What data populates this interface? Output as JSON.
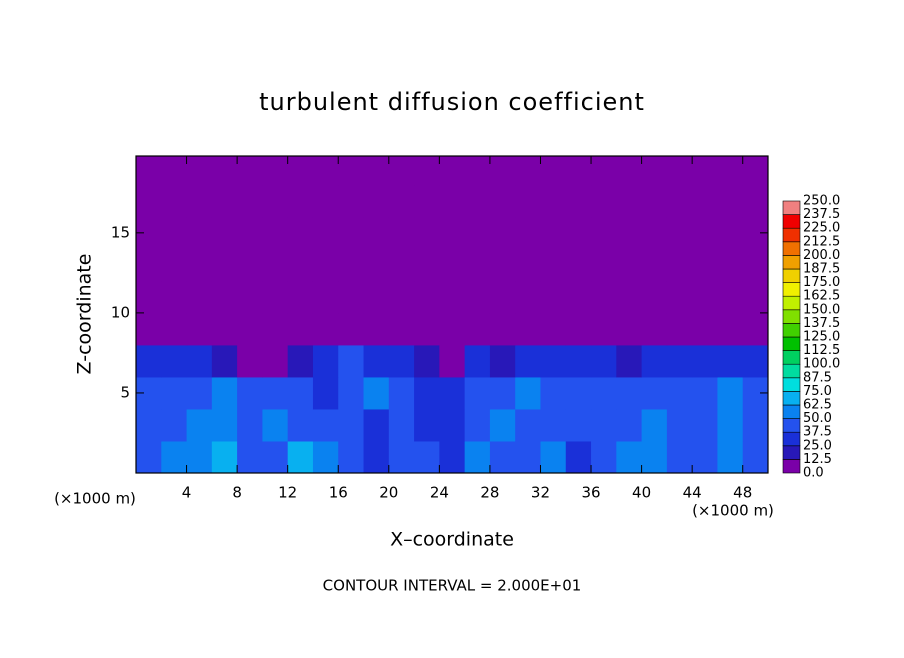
{
  "chart_data": {
    "type": "heatmap",
    "title": "turbulent diffusion coefficient",
    "x_label": "X–coordinate",
    "y_label": "Z-coordinate",
    "x_unit": "(×1000 m)",
    "note": "CONTOUR INTERVAL = 2.000E+01",
    "xlim": [
      0,
      50
    ],
    "ylim": [
      0,
      19.8
    ],
    "xticks": [
      4,
      8,
      12,
      16,
      20,
      24,
      28,
      32,
      36,
      40,
      44,
      48
    ],
    "yticks": [
      5,
      10,
      15
    ],
    "x": [
      1,
      3,
      5,
      7,
      9,
      11,
      13,
      15,
      17,
      19,
      21,
      23,
      25,
      27,
      29,
      31,
      33,
      35,
      37,
      39,
      41,
      43,
      45,
      47,
      49
    ],
    "y": [
      1,
      3,
      5,
      7,
      9,
      11,
      13,
      15,
      17,
      19
    ],
    "z": [
      [
        45,
        60,
        55,
        70,
        40,
        45,
        65,
        50,
        40,
        35,
        40,
        38,
        35,
        60,
        40,
        45,
        55,
        35,
        40,
        50,
        60,
        45,
        40,
        55,
        40
      ],
      [
        40,
        45,
        60,
        50,
        40,
        55,
        45,
        40,
        38,
        36,
        38,
        35,
        35,
        45,
        50,
        40,
        42,
        38,
        40,
        45,
        55,
        40,
        38,
        60,
        40
      ],
      [
        38,
        42,
        40,
        50,
        45,
        40,
        38,
        35,
        40,
        60,
        38,
        36,
        35,
        40,
        42,
        60,
        40,
        38,
        40,
        38,
        40,
        40,
        38,
        55,
        38
      ],
      [
        35,
        30,
        25,
        20,
        12,
        8,
        20,
        35,
        38,
        30,
        35,
        15,
        10,
        25,
        20,
        30,
        28,
        25,
        30,
        20,
        25,
        30,
        35,
        30,
        35
      ],
      [
        0,
        0,
        0,
        0,
        0,
        0,
        0,
        0,
        0,
        0,
        0,
        0,
        0,
        0,
        0,
        0,
        0,
        0,
        0,
        0,
        0,
        0,
        0,
        0,
        0
      ],
      [
        0,
        0,
        0,
        0,
        0,
        0,
        0,
        0,
        0,
        0,
        0,
        0,
        0,
        0,
        0,
        0,
        0,
        0,
        0,
        0,
        0,
        0,
        0,
        0,
        0
      ],
      [
        0,
        0,
        0,
        0,
        0,
        0,
        0,
        0,
        0,
        0,
        0,
        0,
        0,
        0,
        0,
        0,
        0,
        0,
        0,
        0,
        0,
        0,
        0,
        0,
        0
      ],
      [
        0,
        0,
        0,
        0,
        0,
        0,
        0,
        0,
        0,
        0,
        0,
        0,
        0,
        0,
        0,
        0,
        0,
        0,
        0,
        0,
        0,
        0,
        0,
        0,
        0
      ],
      [
        0,
        0,
        0,
        0,
        0,
        0,
        0,
        0,
        0,
        0,
        0,
        0,
        0,
        0,
        0,
        0,
        0,
        0,
        0,
        0,
        0,
        0,
        0,
        0,
        0
      ],
      [
        0,
        0,
        0,
        0,
        0,
        0,
        0,
        0,
        0,
        0,
        0,
        0,
        0,
        0,
        0,
        0,
        0,
        0,
        0,
        0,
        0,
        0,
        0,
        0,
        0
      ]
    ],
    "levels": [
      {
        "value": 0,
        "label": "0.0"
      },
      {
        "value": 12.5,
        "label": "12.5"
      },
      {
        "value": 25,
        "label": "25.0"
      },
      {
        "value": 37.5,
        "label": "37.5"
      },
      {
        "value": 50,
        "label": "50.0"
      },
      {
        "value": 62.5,
        "label": "62.5"
      },
      {
        "value": 75,
        "label": "75.0"
      },
      {
        "value": 87.5,
        "label": "87.5"
      },
      {
        "value": 100,
        "label": "100.0"
      },
      {
        "value": 112.5,
        "label": "112.5"
      },
      {
        "value": 125,
        "label": "125.0"
      },
      {
        "value": 137.5,
        "label": "137.5"
      },
      {
        "value": 150,
        "label": "150.0"
      },
      {
        "value": 162.5,
        "label": "162.5"
      },
      {
        "value": 175,
        "label": "175.0"
      },
      {
        "value": 187.5,
        "label": "187.5"
      },
      {
        "value": 200,
        "label": "200.0"
      },
      {
        "value": 212.5,
        "label": "212.5"
      },
      {
        "value": 225,
        "label": "225.0"
      },
      {
        "value": 237.5,
        "label": "237.5"
      },
      {
        "value": 250,
        "label": "250.0"
      }
    ],
    "colors": [
      "#7a00a8",
      "#2818b8",
      "#1a30d8",
      "#2452ee",
      "#0a82f0",
      "#08b0f0",
      "#00dede",
      "#00dca0",
      "#00d060",
      "#00c000",
      "#40d000",
      "#80e000",
      "#c0f000",
      "#f0f000",
      "#f0d000",
      "#f0a000",
      "#f07000",
      "#f03000",
      "#f00000",
      "#f08080"
    ]
  }
}
